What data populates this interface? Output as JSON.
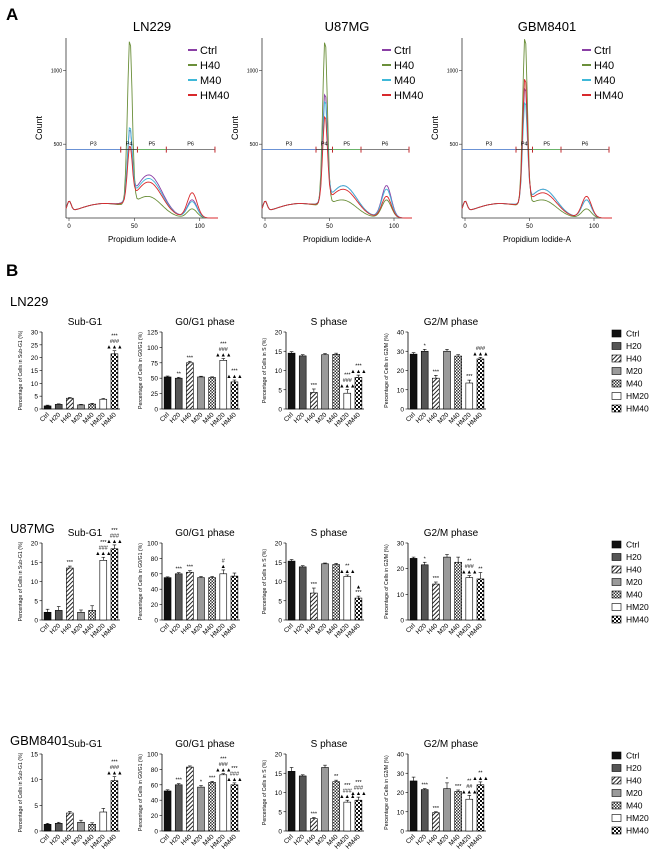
{
  "panel_labels": [
    "A",
    "B"
  ],
  "colors": {
    "Ctrl": "#8a3fa5",
    "H40": "#6b8f3a",
    "M40": "#3fb8d8",
    "HM40": "#d8292c",
    "P3": "#3a6fc7",
    "P4": "#2a2a2a",
    "P5": "#3a9a3a",
    "P6": "#5a5a5a",
    "gate_marker": "#c0282c"
  },
  "hist_common": {
    "xlabel": "Propidium Iodide-A",
    "ylabel": "Count",
    "series": [
      "Ctrl",
      "H40",
      "M40",
      "HM40"
    ],
    "gates": [
      "P3",
      "P4",
      "P5",
      "P6"
    ],
    "x_ticks": [
      "0",
      "50",
      "100"
    ]
  },
  "histograms": [
    {
      "title": "LN229",
      "y_ticks": [
        "500",
        "1000"
      ],
      "gate_p4_label": "P4"
    },
    {
      "title": "U87MG",
      "y_ticks": [
        "500",
        "1000"
      ],
      "gate_p4_label": "P4"
    },
    {
      "title": "GBM8401",
      "y_ticks": [
        "500",
        "1000"
      ],
      "gate_p4_label": "P4"
    }
  ],
  "bar_common": {
    "categories": [
      "Ctrl",
      "H20",
      "H40",
      "M20",
      "M40",
      "HM20",
      "HM40"
    ],
    "phases": [
      {
        "title": "Sub-G1",
        "ylabel": "Percentage of Cells in Sub-G1 (%)"
      },
      {
        "title": "G0/G1 phase",
        "ylabel": "Percentage of Cells in G0/G1 (%)"
      },
      {
        "title": "S phase",
        "ylabel": "Percentage of Cells in S (%)"
      },
      {
        "title": "G2/M phase",
        "ylabel": "Percentage of Cells in G2/M (%)"
      }
    ],
    "legend": [
      "Ctrl",
      "H20",
      "H40",
      "M20",
      "M40",
      "HM20",
      "HM40"
    ]
  },
  "chart_data": [
    {
      "type": "bar",
      "cell_line": "LN229",
      "title": "Sub-G1",
      "ylabel": "Percentage of Cells in Sub-G1 (%)",
      "categories": [
        "Ctrl",
        "H20",
        "H40",
        "M20",
        "M40",
        "HM20",
        "HM40"
      ],
      "values": [
        1.2,
        1.8,
        4.2,
        1.6,
        1.9,
        3.8,
        21.5
      ],
      "errors": [
        0.3,
        0.2,
        0.3,
        0.2,
        0.3,
        0.3,
        1.2
      ],
      "ylim": [
        0,
        30
      ],
      "yticks": [
        0,
        5,
        10,
        15,
        20,
        25,
        30
      ],
      "annotations": [
        "",
        "",
        "",
        "",
        "",
        "",
        "***\n###\n▲▲▲"
      ]
    },
    {
      "type": "bar",
      "cell_line": "LN229",
      "title": "G0/G1 phase",
      "ylabel": "Percentage of Cells in G0/G1 (%)",
      "categories": [
        "Ctrl",
        "H20",
        "H40",
        "M20",
        "M40",
        "HM20",
        "HM40"
      ],
      "values": [
        52,
        50,
        75,
        52,
        51,
        79,
        44
      ],
      "errors": [
        1.5,
        1.5,
        2.5,
        1.2,
        1.2,
        3,
        3
      ],
      "ylim": [
        0,
        125
      ],
      "yticks": [
        0,
        25,
        50,
        75,
        100,
        125
      ],
      "annotations": [
        "",
        "**",
        "***",
        "",
        "",
        "***\n###\n▲▲▲",
        "***\n▲▲▲"
      ]
    },
    {
      "type": "bar",
      "cell_line": "LN229",
      "title": "S phase",
      "ylabel": "Percentage of Cells in S (%)",
      "categories": [
        "Ctrl",
        "H20",
        "H40",
        "M20",
        "M40",
        "HM20",
        "HM40"
      ],
      "values": [
        14.5,
        13.8,
        4.3,
        14.1,
        14.2,
        4.1,
        8.2
      ],
      "errors": [
        0.4,
        0.3,
        0.9,
        0.3,
        0.3,
        1.0,
        0.6
      ],
      "ylim": [
        0,
        20
      ],
      "yticks": [
        0,
        5,
        10,
        15,
        20
      ],
      "annotations": [
        "",
        "",
        "***",
        "",
        "",
        "***\n###\n▲▲▲",
        "***\n▲▲▲"
      ]
    },
    {
      "type": "bar",
      "cell_line": "LN229",
      "title": "G2/M phase",
      "ylabel": "Percentage of Cells in G2/M (%)",
      "categories": [
        "Ctrl",
        "H20",
        "H40",
        "M20",
        "M40",
        "HM20",
        "HM40"
      ],
      "values": [
        28.5,
        30,
        16,
        30,
        27.5,
        13.5,
        26
      ],
      "errors": [
        0.8,
        1,
        1.5,
        1,
        0.7,
        1.5,
        0.8
      ],
      "ylim": [
        0,
        40
      ],
      "yticks": [
        0,
        10,
        20,
        30,
        40
      ],
      "annotations": [
        "",
        "*",
        "***",
        "",
        "",
        "***",
        "###\n▲▲▲"
      ]
    },
    {
      "type": "bar",
      "cell_line": "U87MG",
      "title": "Sub-G1",
      "ylabel": "Percentage of Cells in Sub-G1 (%)",
      "categories": [
        "Ctrl",
        "H20",
        "H40",
        "M20",
        "M40",
        "HM20",
        "HM40"
      ],
      "values": [
        2,
        2.5,
        13.5,
        2,
        2.5,
        15.5,
        18.5
      ],
      "errors": [
        0.8,
        1,
        0.5,
        0.6,
        1.2,
        0.8,
        1
      ],
      "ylim": [
        0,
        20
      ],
      "yticks": [
        0,
        5,
        10,
        15,
        20
      ],
      "annotations": [
        "",
        "",
        "***",
        "",
        "",
        "***\n###\n▲▲▲",
        "***\n###\n▲▲▲"
      ]
    },
    {
      "type": "bar",
      "cell_line": "U87MG",
      "title": "G0/G1 phase",
      "ylabel": "Percentage of Cells in G0/G1 (%)",
      "categories": [
        "Ctrl",
        "H20",
        "H40",
        "M20",
        "M40",
        "HM20",
        "HM40"
      ],
      "values": [
        55,
        60,
        62,
        55,
        55,
        60,
        57
      ],
      "errors": [
        1,
        1.5,
        2,
        1.5,
        1.5,
        5,
        4
      ],
      "ylim": [
        0,
        100
      ],
      "yticks": [
        0,
        20,
        40,
        60,
        80,
        100
      ],
      "annotations": [
        "",
        "***",
        "***",
        "",
        "",
        "#\n▲",
        ""
      ]
    },
    {
      "type": "bar",
      "cell_line": "U87MG",
      "title": "S phase",
      "ylabel": "Percentage of Cells in S (%)",
      "categories": [
        "Ctrl",
        "H20",
        "H40",
        "M20",
        "M40",
        "HM20",
        "HM40"
      ],
      "values": [
        15.3,
        13.8,
        7,
        14.6,
        14.4,
        11.3,
        5.7
      ],
      "errors": [
        0.4,
        0.3,
        1.3,
        0.2,
        0.3,
        0.4,
        0.5
      ],
      "ylim": [
        0,
        20
      ],
      "yticks": [
        0,
        5,
        10,
        15,
        20
      ],
      "annotations": [
        "",
        "",
        "***",
        "",
        "",
        "**\n▲▲▲",
        "▲\n***"
      ]
    },
    {
      "type": "bar",
      "cell_line": "U87MG",
      "title": "G2/M phase",
      "ylabel": "Percentage of Cells in G2/M (%)",
      "categories": [
        "Ctrl",
        "H20",
        "H40",
        "M20",
        "M40",
        "HM20",
        "HM40"
      ],
      "values": [
        24,
        21.5,
        14,
        24.5,
        22.5,
        16.5,
        16
      ],
      "errors": [
        0.5,
        1,
        0.8,
        1,
        2,
        0.8,
        2.5
      ],
      "ylim": [
        0,
        30
      ],
      "yticks": [
        0,
        10,
        20,
        30
      ],
      "annotations": [
        "",
        "*",
        "***",
        "",
        "",
        "**\n###\n▲▲▲",
        "**"
      ]
    },
    {
      "type": "bar",
      "cell_line": "GBM8401",
      "title": "Sub-G1",
      "ylabel": "Percentage of Cells in Sub-G1 (%)",
      "categories": [
        "Ctrl",
        "H20",
        "H40",
        "M20",
        "M40",
        "HM20",
        "HM40"
      ],
      "values": [
        1.3,
        1.5,
        3.5,
        1.7,
        1.3,
        3.7,
        9.8
      ],
      "errors": [
        0.2,
        0.2,
        0.3,
        0.4,
        0.3,
        0.7,
        0.8
      ],
      "ylim": [
        0,
        15
      ],
      "yticks": [
        0,
        5,
        10,
        15
      ],
      "annotations": [
        "",
        "",
        "",
        "",
        "",
        "",
        "***\n###\n▲▲▲"
      ]
    },
    {
      "type": "bar",
      "cell_line": "GBM8401",
      "title": "G0/G1 phase",
      "ylabel": "Percentage of Cells in G0/G1 (%)",
      "categories": [
        "Ctrl",
        "H20",
        "H40",
        "M20",
        "M40",
        "HM20",
        "HM40"
      ],
      "values": [
        52,
        60,
        83,
        57,
        63,
        73,
        60
      ],
      "errors": [
        1.5,
        1.5,
        1.5,
        2,
        1.5,
        1.5,
        2.5
      ],
      "ylim": [
        0,
        100
      ],
      "yticks": [
        0,
        20,
        40,
        60,
        80,
        100
      ],
      "annotations": [
        "",
        "***",
        "",
        "*",
        "***",
        "***\n###\n▲▲▲",
        "***\n###\n▲▲▲"
      ]
    },
    {
      "type": "bar",
      "cell_line": "GBM8401",
      "title": "S phase",
      "ylabel": "Percentage of Cells in S (%)",
      "categories": [
        "Ctrl",
        "H20",
        "H40",
        "M20",
        "M40",
        "HM20",
        "HM40"
      ],
      "values": [
        15.5,
        14.3,
        3.2,
        16.5,
        12.8,
        7.5,
        8
      ],
      "errors": [
        1,
        0.3,
        0.3,
        0.6,
        0.4,
        0.5,
        0.8
      ],
      "ylim": [
        0,
        20
      ],
      "yticks": [
        0,
        5,
        10,
        15,
        20
      ],
      "annotations": [
        "",
        "",
        "***",
        "",
        "**",
        "***\n###\n▲▲▲",
        "***\n###\n▲▲▲"
      ]
    },
    {
      "type": "bar",
      "cell_line": "GBM8401",
      "title": "G2/M phase",
      "ylabel": "Percentage of Cells in G2/M (%)",
      "categories": [
        "Ctrl",
        "H20",
        "H40",
        "M20",
        "M40",
        "HM20",
        "HM40"
      ],
      "values": [
        26,
        21.5,
        9.5,
        22,
        20.5,
        16.5,
        24
      ],
      "errors": [
        2,
        0.5,
        0.5,
        3,
        0.8,
        2,
        1.5
      ],
      "ylim": [
        0,
        40
      ],
      "yticks": [
        0,
        10,
        20,
        30,
        40
      ],
      "annotations": [
        "",
        "***",
        "***",
        "*",
        "***",
        "**\n##\n▲▲▲",
        "**\n▲▲▲"
      ]
    }
  ],
  "bar_rows": [
    {
      "cell_line": "LN229"
    },
    {
      "cell_line": "U87MG"
    },
    {
      "cell_line": "GBM8401"
    }
  ]
}
